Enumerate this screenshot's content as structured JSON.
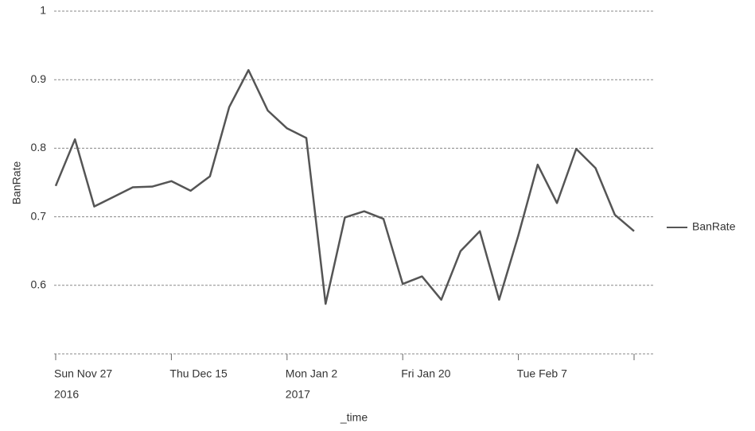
{
  "chart_data": {
    "type": "line",
    "x": [
      "2016-11-27",
      "2016-11-30",
      "2016-12-03",
      "2016-12-06",
      "2016-12-09",
      "2016-12-12",
      "2016-12-15",
      "2016-12-18",
      "2016-12-21",
      "2016-12-24",
      "2016-12-27",
      "2016-12-30",
      "2017-01-02",
      "2017-01-05",
      "2017-01-08",
      "2017-01-11",
      "2017-01-14",
      "2017-01-17",
      "2017-01-20",
      "2017-01-23",
      "2017-01-26",
      "2017-01-29",
      "2017-02-01",
      "2017-02-04",
      "2017-02-07",
      "2017-02-10",
      "2017-02-13",
      "2017-02-16",
      "2017-02-19",
      "2017-02-22",
      "2017-02-25"
    ],
    "series": [
      {
        "name": "BanRate",
        "color": "#555555",
        "values": [
          0.745,
          0.813,
          0.715,
          0.729,
          0.743,
          0.744,
          0.752,
          0.738,
          0.759,
          0.86,
          0.914,
          0.855,
          0.829,
          0.815,
          0.573,
          0.699,
          0.708,
          0.697,
          0.602,
          0.613,
          0.579,
          0.65,
          0.679,
          0.579,
          0.673,
          0.776,
          0.72,
          0.799,
          0.771,
          0.703,
          0.679
        ]
      }
    ],
    "xlim": [
      "2016-11-27",
      "2017-02-25"
    ],
    "xticks": [
      {
        "value": "2016-11-27",
        "label": "Sun Nov 27",
        "year": "2016"
      },
      {
        "value": "2016-12-15",
        "label": "Thu Dec 15"
      },
      {
        "value": "2017-01-02",
        "label": "Mon Jan 2",
        "year": "2017"
      },
      {
        "value": "2017-01-20",
        "label": "Fri Jan 20"
      },
      {
        "value": "2017-02-07",
        "label": "Tue Feb 7"
      },
      {
        "value": "2017-02-25",
        "label": null
      }
    ],
    "ylim": [
      0.5,
      1
    ],
    "yticks": [
      0.6,
      0.7,
      0.8,
      0.9,
      1
    ],
    "ylabel": "BanRate",
    "xlabel": "_time",
    "grid": true,
    "legend": "right"
  }
}
